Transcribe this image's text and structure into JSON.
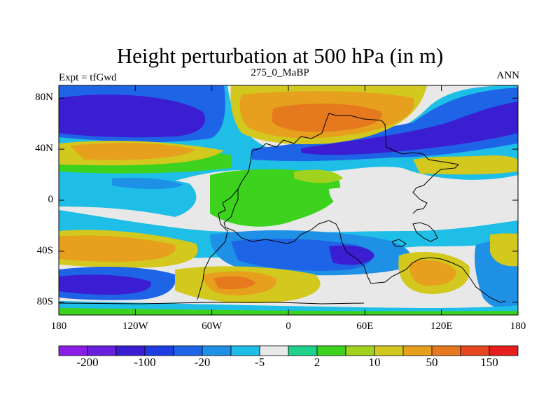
{
  "title": "Height perturbation at 500 hPa (in m)",
  "left_label": "Expt = tfGwd",
  "center_label": "275_0_MaBP",
  "right_label": "ANN",
  "lat_ticks": [
    {
      "label": "80N",
      "value": 80
    },
    {
      "label": "40N",
      "value": 40
    },
    {
      "label": "0",
      "value": 0
    },
    {
      "label": "40S",
      "value": -40
    },
    {
      "label": "80S",
      "value": -80
    }
  ],
  "lon_ticks": [
    {
      "label": "180",
      "value": -180
    },
    {
      "label": "120W",
      "value": -120
    },
    {
      "label": "60W",
      "value": -60
    },
    {
      "label": "0",
      "value": 0
    },
    {
      "label": "60E",
      "value": 60
    },
    {
      "label": "120E",
      "value": 120
    },
    {
      "label": "180",
      "value": 180
    }
  ],
  "colorbar": {
    "colors": [
      "#8a1ee6",
      "#6a1ee0",
      "#3c1ed2",
      "#1e3ce0",
      "#1e64e6",
      "#1e90e6",
      "#1ebee6",
      "#e8e8e8",
      "#1ed28c",
      "#3cd21e",
      "#a0d21e",
      "#d2c81e",
      "#e6a01e",
      "#e6781e",
      "#e6461e",
      "#e61e1e"
    ],
    "labels": [
      {
        "label": "-200",
        "index": 1
      },
      {
        "label": "-100",
        "index": 3
      },
      {
        "label": "-20",
        "index": 5
      },
      {
        "label": "-5",
        "index": 7
      },
      {
        "label": "2",
        "index": 9
      },
      {
        "label": "10",
        "index": 11
      },
      {
        "label": "50",
        "index": 13
      },
      {
        "label": "150",
        "index": 15
      }
    ]
  }
}
